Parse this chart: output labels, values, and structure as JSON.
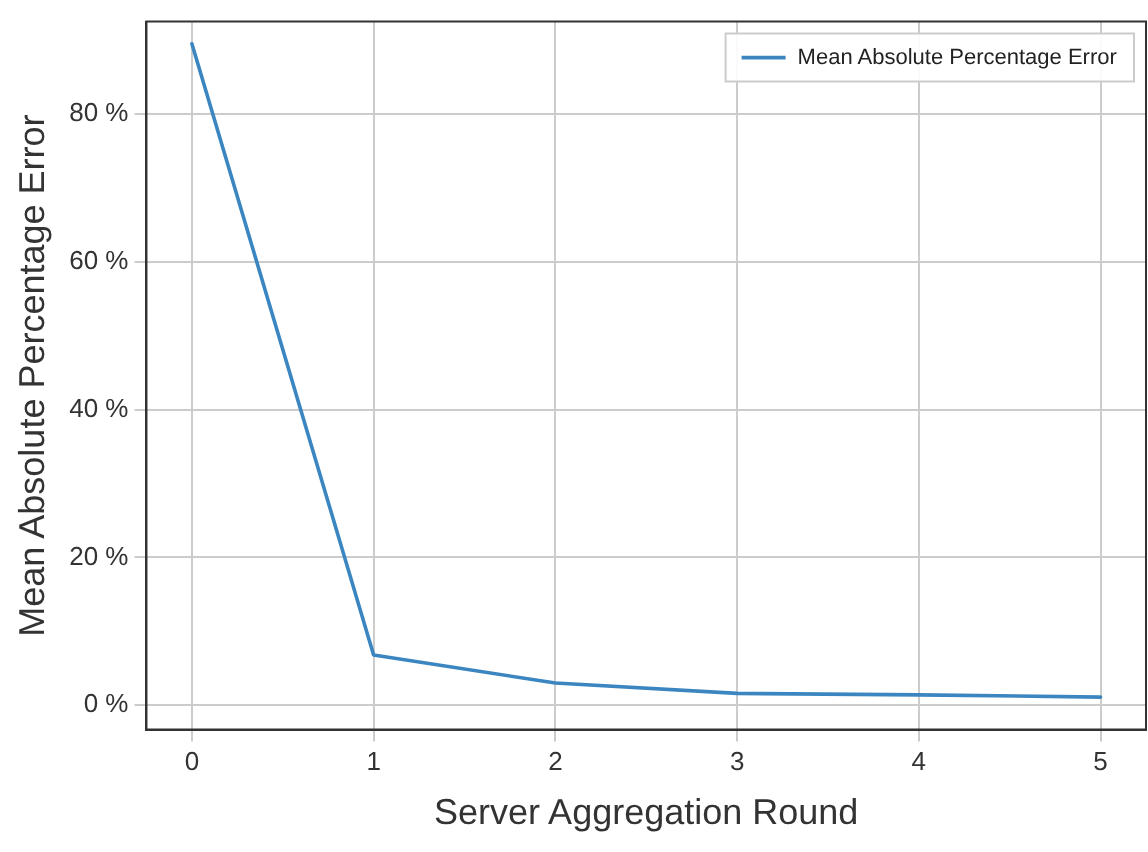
{
  "chart_data": {
    "type": "line",
    "xlabel": "Server Aggregation Round",
    "ylabel": "Mean Absolute Percentage Error",
    "x": [
      0,
      1,
      2,
      3,
      4,
      5
    ],
    "series": [
      {
        "name": "Mean Absolute Percentage Error",
        "color": "#3b86c0",
        "values": [
          89.5,
          6.8,
          3.0,
          1.6,
          1.4,
          1.1
        ]
      }
    ],
    "xlim": [
      -0.25,
      5.25
    ],
    "xticks": [
      0,
      1,
      2,
      3,
      4,
      5
    ],
    "ylim": [
      -3.3,
      92.5
    ],
    "yticks": [
      {
        "value": 0,
        "label": "0 %"
      },
      {
        "value": 20,
        "label": "20 %"
      },
      {
        "value": 40,
        "label": "40 %"
      },
      {
        "value": 60,
        "label": "60 %"
      },
      {
        "value": 80,
        "label": "80 %"
      }
    ],
    "grid": true,
    "legend": "top right",
    "marker": "none",
    "line_style": "solid"
  }
}
